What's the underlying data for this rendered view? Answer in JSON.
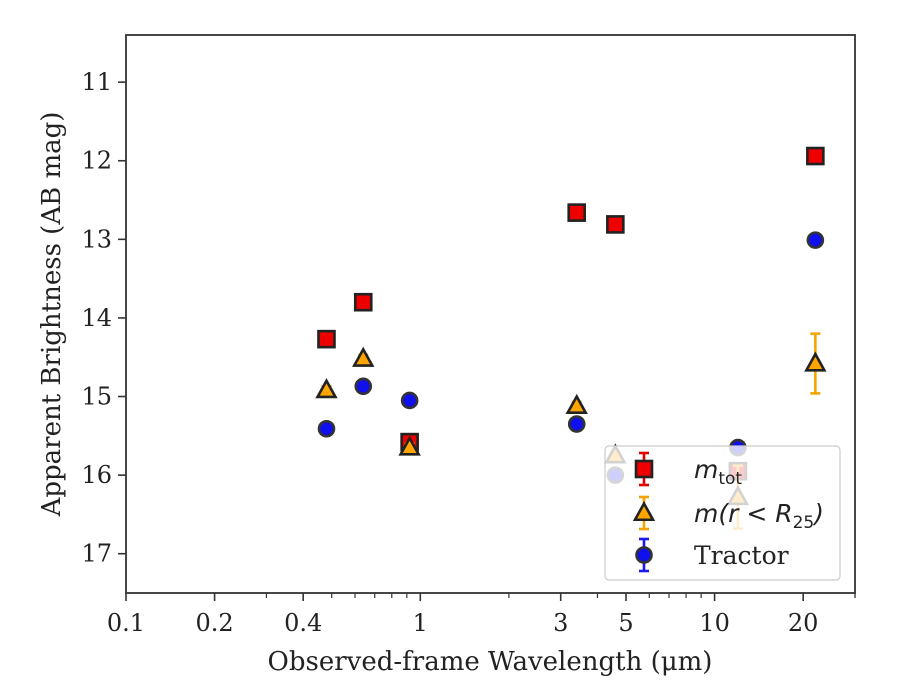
{
  "chart_data": {
    "type": "scatter",
    "xlabel": "Observed-frame Wavelength (μm)",
    "ylabel": "Apparent Brightness (AB mag)",
    "xscale": "log",
    "xlim": [
      0.1,
      30
    ],
    "ylim": [
      17.5,
      10.4
    ],
    "y_inverted": true,
    "grid": false,
    "legend_placement": "lower-right",
    "x_ticks": [
      {
        "value": 0.1,
        "label": "0.1"
      },
      {
        "value": 0.2,
        "label": "0.2"
      },
      {
        "value": 0.4,
        "label": "0.4"
      },
      {
        "value": 1,
        "label": "1"
      },
      {
        "value": 3,
        "label": "3"
      },
      {
        "value": 5,
        "label": "5"
      },
      {
        "value": 10,
        "label": "10"
      },
      {
        "value": 20,
        "label": "20"
      }
    ],
    "y_ticks": [
      {
        "value": 11,
        "label": "11"
      },
      {
        "value": 12,
        "label": "12"
      },
      {
        "value": 13,
        "label": "13"
      },
      {
        "value": 14,
        "label": "14"
      },
      {
        "value": 15,
        "label": "15"
      },
      {
        "value": 16,
        "label": "16"
      },
      {
        "value": 17,
        "label": "17"
      }
    ],
    "series": [
      {
        "name": "m_tot",
        "legend_main": "m",
        "legend_sub": "tot",
        "marker": "square",
        "color": "#ee0000",
        "errcolor": "#e00000",
        "points": [
          {
            "x": 0.48,
            "y": 14.27,
            "err": 0.05
          },
          {
            "x": 0.64,
            "y": 13.8,
            "err": 0.05
          },
          {
            "x": 0.92,
            "y": 15.58,
            "err": 0.05
          },
          {
            "x": 3.4,
            "y": 12.66,
            "err": 0.05
          },
          {
            "x": 4.6,
            "y": 12.81,
            "err": 0.05
          },
          {
            "x": 12,
            "y": 15.95,
            "err": 0.05
          },
          {
            "x": 22,
            "y": 11.94,
            "err": 0.05
          }
        ]
      },
      {
        "name": "m(r < R25)",
        "legend_main": "m(r < R",
        "legend_sub": "25",
        "legend_tail": ")",
        "marker": "triangle",
        "color": "#ffa500",
        "errcolor": "#f5a300",
        "points": [
          {
            "x": 0.48,
            "y": 14.92,
            "err": 0.05
          },
          {
            "x": 0.64,
            "y": 14.52,
            "err": 0.05
          },
          {
            "x": 0.92,
            "y": 15.65,
            "err": 0.05
          },
          {
            "x": 3.4,
            "y": 15.12,
            "err": 0.05
          },
          {
            "x": 4.6,
            "y": 15.75,
            "err": 0.05
          },
          {
            "x": 12,
            "y": 16.28,
            "err": 0.4
          },
          {
            "x": 22,
            "y": 14.58,
            "err": 0.38
          }
        ]
      },
      {
        "name": "Tractor",
        "legend_main": "Tractor",
        "marker": "circle",
        "color": "#1010ee",
        "errcolor": "#1a1aee",
        "points": [
          {
            "x": 0.48,
            "y": 15.41,
            "err": 0.07
          },
          {
            "x": 0.64,
            "y": 14.87,
            "err": 0.07
          },
          {
            "x": 0.92,
            "y": 15.05,
            "err": 0.07
          },
          {
            "x": 3.4,
            "y": 15.35,
            "err": 0.07
          },
          {
            "x": 4.6,
            "y": 16.0,
            "err": 0.07
          },
          {
            "x": 12,
            "y": 15.65,
            "err": 0.07
          },
          {
            "x": 22,
            "y": 13.01,
            "err": 0.07
          }
        ]
      }
    ]
  }
}
